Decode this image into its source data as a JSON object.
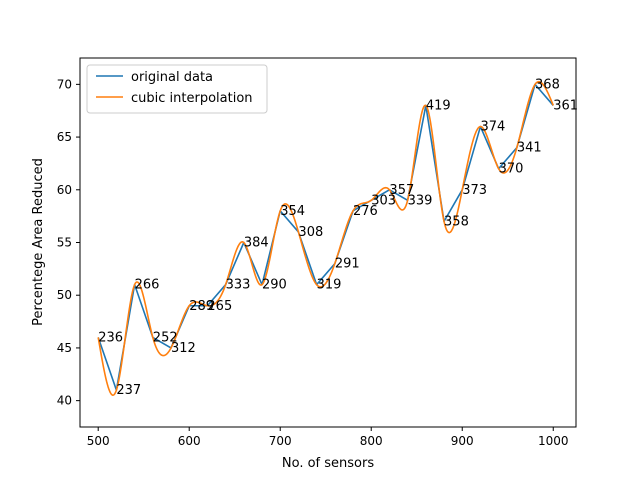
{
  "chart_data": {
    "type": "line",
    "title": "",
    "xlabel": "No. of sensors",
    "ylabel": "Percentege Area Reduced",
    "xlim": [
      480,
      1025
    ],
    "ylim": [
      37.5,
      72.5
    ],
    "xticks": [
      500,
      600,
      700,
      800,
      900,
      1000
    ],
    "xtick_labels": [
      "500",
      "600",
      "700",
      "800",
      "900",
      "1000"
    ],
    "yticks": [
      40,
      45,
      50,
      55,
      60,
      65,
      70
    ],
    "ytick_labels": [
      "40",
      "45",
      "50",
      "55",
      "60",
      "65",
      "70"
    ],
    "grid": false,
    "legend_position": "upper-left",
    "x": [
      500,
      520,
      540,
      560,
      580,
      600,
      620,
      640,
      660,
      680,
      700,
      720,
      740,
      760,
      780,
      800,
      820,
      840,
      860,
      880,
      900,
      920,
      940,
      960,
      980,
      1000
    ],
    "series": [
      {
        "name": "original data",
        "color": "#1f77b4",
        "values": [
          46,
          41,
          51,
          46,
          45,
          49,
          49,
          51,
          55,
          51,
          58,
          56,
          51,
          53,
          58,
          59,
          60,
          59,
          68,
          57,
          60,
          66,
          62,
          64,
          70,
          68
        ]
      },
      {
        "name": "cubic interpolation",
        "color": "#ff7f0e",
        "values": [
          46,
          41,
          51,
          46,
          45,
          49,
          49,
          51,
          55,
          51,
          58,
          56,
          51,
          53,
          58,
          59,
          60,
          59,
          68,
          57,
          60,
          66,
          62,
          64,
          70,
          68
        ]
      }
    ],
    "point_labels": [
      "236",
      "237",
      "266",
      "252",
      "312",
      "289",
      "265",
      "333",
      "384",
      "290",
      "354",
      "308",
      "319",
      "291",
      "276",
      "303",
      "357",
      "339",
      "419",
      "358",
      "373",
      "374",
      "370",
      "341",
      "368",
      "361"
    ]
  }
}
